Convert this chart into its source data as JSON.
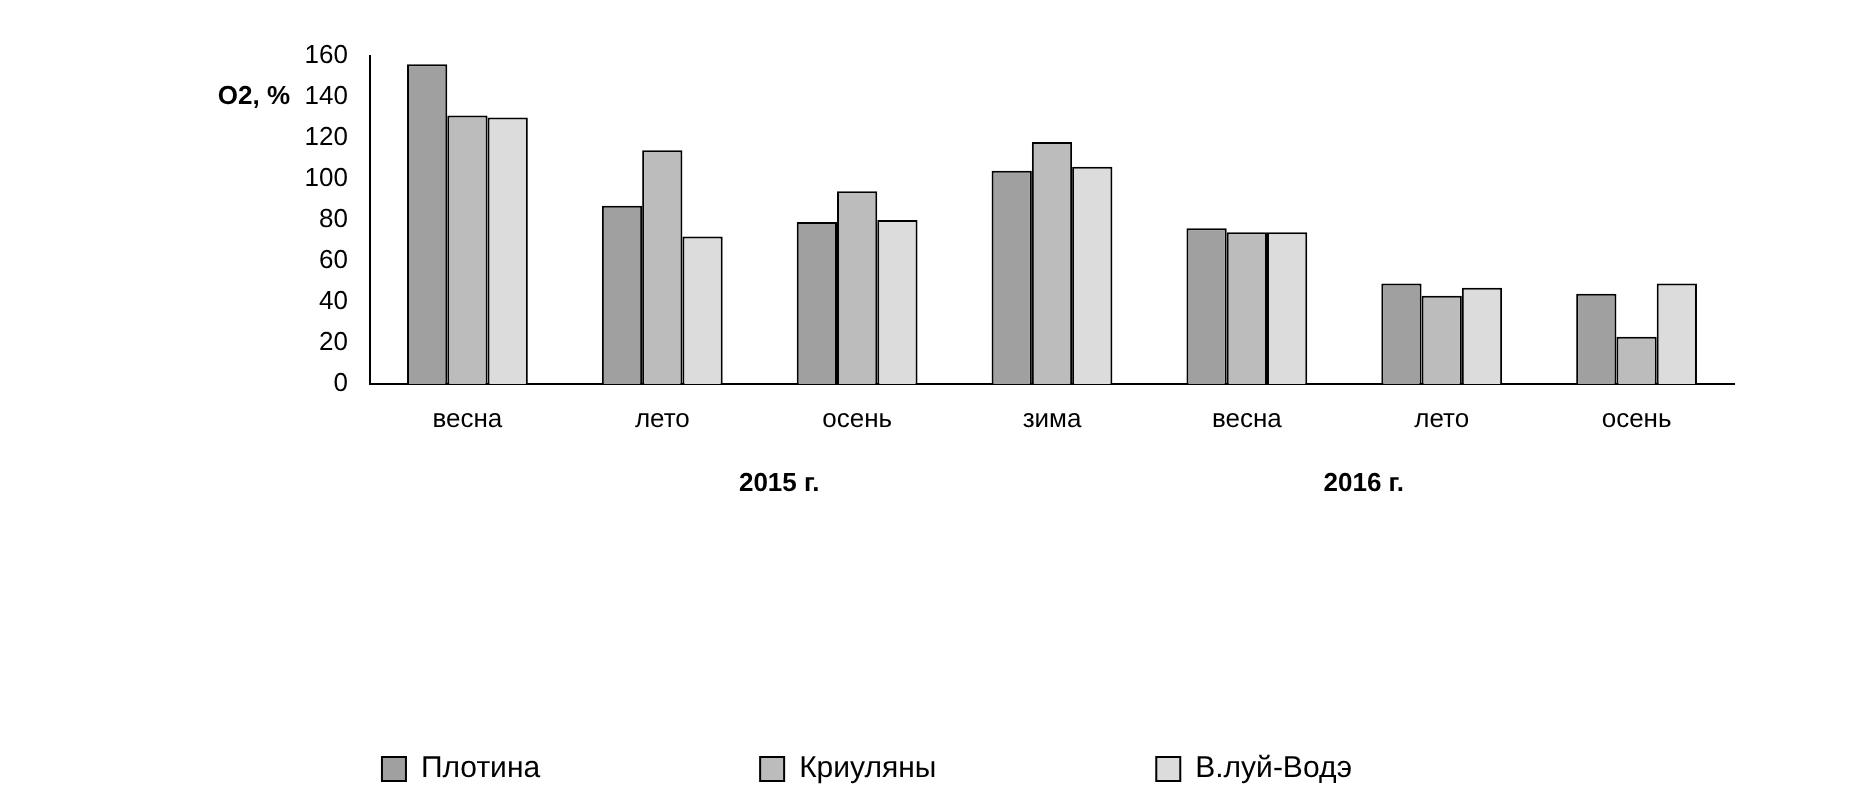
{
  "chart_data": {
    "type": "bar",
    "ylabel": "O2, %",
    "categories": [
      "весна",
      "лето",
      "осень",
      "зима",
      "весна",
      "лето",
      "осень"
    ],
    "series": [
      {
        "name": "Плотина",
        "color": "#a0a0a0",
        "values": [
          156,
          87,
          79,
          104,
          76,
          49,
          44
        ]
      },
      {
        "name": "Криуляны",
        "color": "#bcbcbc",
        "values": [
          131,
          114,
          94,
          118,
          74,
          43,
          23
        ]
      },
      {
        "name": "В.луй-Водэ",
        "color": "#dcdcdc",
        "values": [
          130,
          72,
          80,
          106,
          74,
          47,
          49
        ]
      }
    ],
    "ylim": [
      0,
      160
    ],
    "yticks": [
      0,
      20,
      40,
      60,
      80,
      100,
      120,
      140,
      160
    ],
    "annotations": [
      "2015 г.",
      "2016 г."
    ],
    "grid": false,
    "legend": "bottom"
  }
}
